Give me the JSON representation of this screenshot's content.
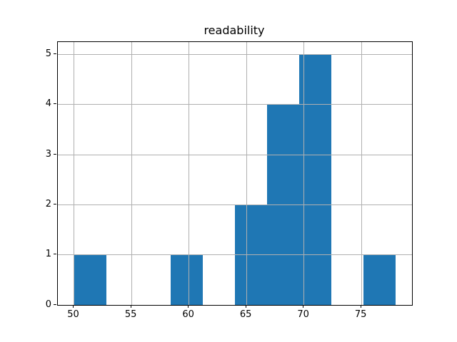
{
  "chart_data": {
    "type": "bar",
    "subtype": "histogram",
    "title": "readability",
    "bin_edges": [
      50.0,
      52.8,
      55.6,
      58.4,
      61.2,
      64.0,
      66.8,
      69.6,
      72.4,
      75.2,
      78.0
    ],
    "counts": [
      1,
      0,
      0,
      1,
      0,
      2,
      4,
      5,
      0,
      1
    ],
    "xticks": [
      50,
      55,
      60,
      65,
      70,
      75
    ],
    "yticks": [
      0,
      1,
      2,
      3,
      4,
      5
    ],
    "xlim": [
      48.6,
      79.4
    ],
    "ylim": [
      0,
      5.25
    ],
    "xlabel": "",
    "ylabel": "",
    "grid": true,
    "legend_position": "none",
    "bar_color": "#1f77b4",
    "grid_color": "#b0b0b0",
    "spine_color": "#000000",
    "background_color": "#ffffff"
  }
}
